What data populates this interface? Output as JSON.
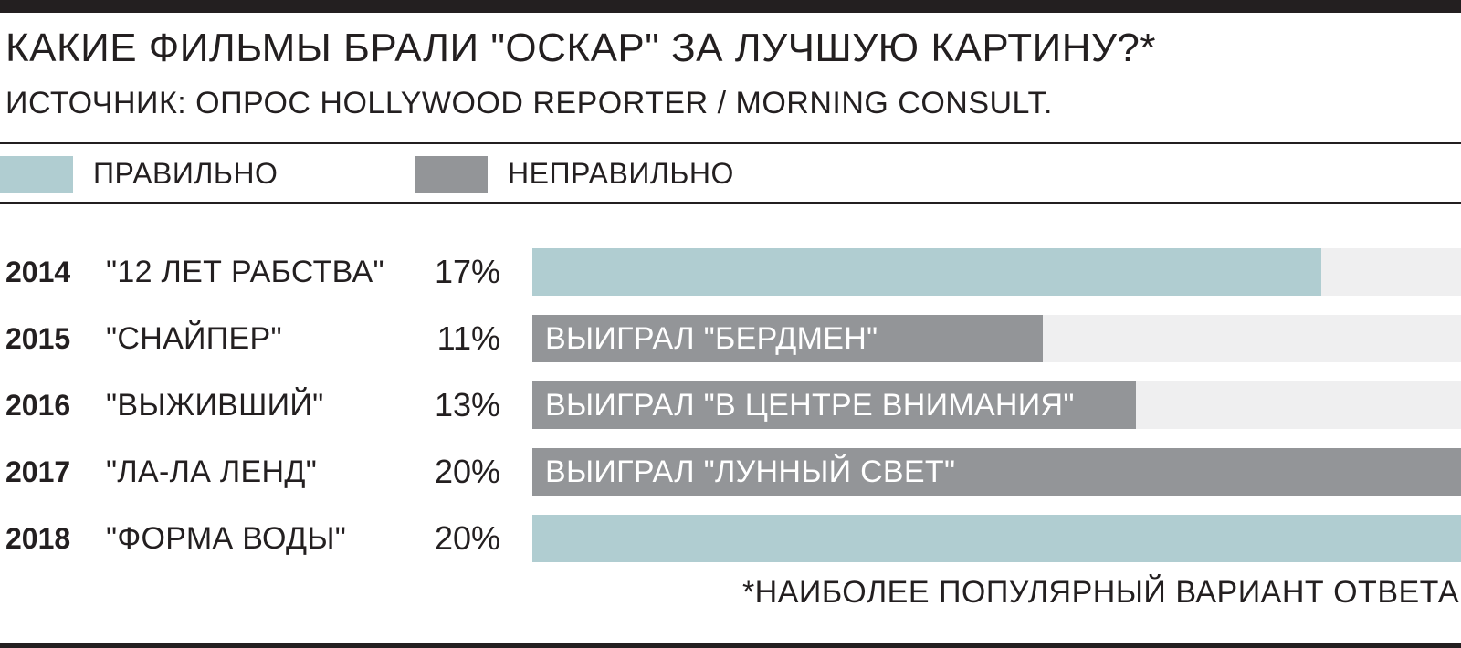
{
  "header": {
    "title": "КАКИЕ ФИЛЬМЫ БРАЛИ \"ОСКАР\" ЗА ЛУЧШУЮ КАРТИНУ?*",
    "source": "ИСТОЧНИК: ОПРОС HOLLYWOOD REPORTER / MORNING CONSULT."
  },
  "legend": [
    {
      "label": "ПРАВИЛЬНО",
      "color": "#b0cdd1"
    },
    {
      "label": "НЕПРАВИЛЬНО",
      "color": "#939598"
    }
  ],
  "colors": {
    "correct": "#b0cdd1",
    "incorrect": "#939598",
    "track": "#efeff0",
    "ink": "#231f20"
  },
  "chart_data": {
    "type": "bar",
    "title": "КАКИЕ ФИЛЬМЫ БРАЛИ \"ОСКАР\" ЗА ЛУЧШУЮ КАРТИНУ?*",
    "subtitle": "ИСТОЧНИК: ОПРОС HOLLYWOOD REPORTER / MORNING CONSULT.",
    "orientation": "horizontal",
    "xlim": [
      0,
      20
    ],
    "categories": [
      "2014",
      "2015",
      "2016",
      "2017",
      "2018"
    ],
    "rows": [
      {
        "year": "2014",
        "film": "\"12 ЛЕТ РАБСТВА\"",
        "value": 17,
        "value_label": "17%",
        "correct": true,
        "note": ""
      },
      {
        "year": "2015",
        "film": "\"СНАЙПЕР\"",
        "value": 11,
        "value_label": "11%",
        "correct": false,
        "note": "ВЫИГРАЛ \"БЕРДМЕН\""
      },
      {
        "year": "2016",
        "film": "\"ВЫЖИВШИЙ\"",
        "value": 13,
        "value_label": "13%",
        "correct": false,
        "note": "ВЫИГРАЛ \"В ЦЕНТРЕ ВНИМАНИЯ\""
      },
      {
        "year": "2017",
        "film": "\"ЛА-ЛА ЛЕНД\"",
        "value": 20,
        "value_label": "20%",
        "correct": false,
        "note": "ВЫИГРАЛ \"ЛУННЫЙ СВЕТ\""
      },
      {
        "year": "2018",
        "film": "\"ФОРМА ВОДЫ\"",
        "value": 20,
        "value_label": "20%",
        "correct": true,
        "note": ""
      }
    ],
    "legend": [
      "ПРАВИЛЬНО",
      "НЕПРАВИЛЬНО"
    ],
    "legend_position": "top",
    "grid": false,
    "footnote": "*НАИБОЛЕЕ ПОПУЛЯРНЫЙ ВАРИАНТ ОТВЕТА"
  }
}
